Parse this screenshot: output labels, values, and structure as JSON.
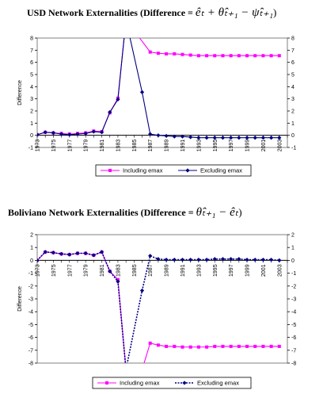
{
  "titles": {
    "chart1_prefix": "USD Network Externalities (Difference = ",
    "chart1_formula": "êₜ + θ̂ₜ₊₁ − ψ̂ₜ₊₁",
    "chart1_suffix": ")",
    "chart2_prefix": "Boliviano Network Externalities (Difference = ",
    "chart2_formula": "θ̂ₜ₊₁ − êₜ",
    "chart2_suffix": ")"
  },
  "chart_data": [
    {
      "type": "line",
      "title": "USD Network Externalities",
      "ylabel": "Difference",
      "ylim": [
        -1,
        8
      ],
      "yticks": [
        -1,
        0,
        1,
        2,
        3,
        4,
        5,
        6,
        7,
        8
      ],
      "xlim": [
        1973,
        2004
      ],
      "xticks": [
        1973,
        1975,
        1977,
        1979,
        1981,
        1983,
        1985,
        1987,
        1989,
        1991,
        1993,
        1995,
        1997,
        1999,
        2001,
        2003
      ],
      "legend_position": "bottom",
      "series": [
        {
          "name": "Including emax",
          "color": "#ff00ff",
          "marker": "square",
          "dashed": false,
          "x": [
            1973,
            1974,
            1975,
            1976,
            1977,
            1978,
            1979,
            1980,
            1981,
            1982,
            1983,
            1984,
            1987,
            1988,
            1989,
            1990,
            1991,
            1992,
            1993,
            1994,
            1995,
            1996,
            1997,
            1998,
            1999,
            2000,
            2001,
            2002,
            2003
          ],
          "y": [
            0.05,
            0.25,
            0.2,
            0.15,
            0.1,
            0.15,
            0.2,
            0.35,
            0.3,
            1.85,
            3.05,
            9.5,
            6.85,
            6.75,
            6.7,
            6.7,
            6.65,
            6.6,
            6.55,
            6.55,
            6.55,
            6.55,
            6.55,
            6.55,
            6.55,
            6.55,
            6.55,
            6.55,
            6.55
          ]
        },
        {
          "name": "Excluding emax",
          "color": "#000080",
          "marker": "diamond",
          "dashed": false,
          "x": [
            1973,
            1974,
            1975,
            1976,
            1977,
            1978,
            1979,
            1980,
            1981,
            1982,
            1983,
            1984,
            1986,
            1987,
            1988,
            1989,
            1990,
            1991,
            1992,
            1993,
            1994,
            1995,
            1996,
            1997,
            1998,
            1999,
            2000,
            2001,
            2002,
            2003
          ],
          "y": [
            0.05,
            0.25,
            0.2,
            0.1,
            0.05,
            0.1,
            0.15,
            0.3,
            0.25,
            1.9,
            2.95,
            9.5,
            3.55,
            0.1,
            0.0,
            -0.05,
            -0.1,
            -0.1,
            -0.15,
            -0.2,
            -0.2,
            -0.2,
            -0.2,
            -0.2,
            -0.2,
            -0.2,
            -0.2,
            -0.2,
            -0.2,
            -0.2
          ]
        }
      ]
    },
    {
      "type": "line",
      "title": "Boliviano Network Externalities",
      "ylabel": "Difference",
      "ylim": [
        -8,
        2
      ],
      "yticks": [
        -8,
        -7,
        -6,
        -5,
        -4,
        -3,
        -2,
        -1,
        0,
        1,
        2
      ],
      "xlim": [
        1973,
        2004
      ],
      "xticks": [
        1973,
        1975,
        1977,
        1979,
        1981,
        1983,
        1985,
        1987,
        1989,
        1991,
        1993,
        1995,
        1997,
        1999,
        2001,
        2003
      ],
      "legend_position": "bottom",
      "series": [
        {
          "name": "Including emax",
          "color": "#ff00ff",
          "marker": "square",
          "dashed": false,
          "x": [
            1973,
            1974,
            1975,
            1976,
            1977,
            1978,
            1979,
            1980,
            1981,
            1982,
            1983,
            1984,
            1986,
            1987,
            1988,
            1989,
            1990,
            1991,
            1992,
            1993,
            1994,
            1995,
            1996,
            1997,
            1998,
            1999,
            2000,
            2001,
            2002,
            2003
          ],
          "y": [
            0.0,
            0.65,
            0.6,
            0.5,
            0.45,
            0.55,
            0.55,
            0.4,
            0.65,
            -0.85,
            -1.5,
            -8.5,
            -8.5,
            -6.45,
            -6.6,
            -6.7,
            -6.7,
            -6.75,
            -6.75,
            -6.75,
            -6.75,
            -6.7,
            -6.7,
            -6.7,
            -6.7,
            -6.7,
            -6.7,
            -6.7,
            -6.7,
            -6.7
          ]
        },
        {
          "name": "Excluding emax",
          "color": "#000080",
          "marker": "diamond",
          "dashed": true,
          "x": [
            1973,
            1974,
            1975,
            1976,
            1977,
            1978,
            1979,
            1980,
            1981,
            1982,
            1983,
            1984,
            1986,
            1987,
            1988,
            1989,
            1990,
            1991,
            1992,
            1993,
            1994,
            1995,
            1996,
            1997,
            1998,
            1999,
            2000,
            2001,
            2002,
            2003
          ],
          "y": [
            0.0,
            0.65,
            0.6,
            0.5,
            0.45,
            0.55,
            0.55,
            0.4,
            0.65,
            -0.85,
            -1.65,
            -8.5,
            -2.35,
            0.35,
            0.1,
            0.05,
            0.05,
            0.05,
            0.05,
            0.05,
            0.05,
            0.1,
            0.1,
            0.1,
            0.1,
            0.05,
            0.05,
            0.05,
            0.05,
            0.0
          ]
        }
      ]
    }
  ]
}
